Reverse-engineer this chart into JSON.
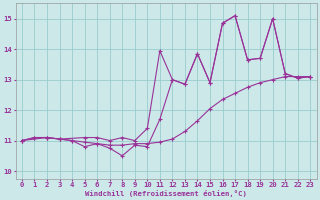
{
  "xlabel": "Windchill (Refroidissement éolien,°C)",
  "bg_color": "#cce8e8",
  "line_color": "#993399",
  "grid_color": "#99cccc",
  "xlim": [
    -0.5,
    23.5
  ],
  "ylim": [
    9.75,
    15.5
  ],
  "xticks": [
    0,
    1,
    2,
    3,
    4,
    5,
    6,
    7,
    8,
    9,
    10,
    11,
    12,
    13,
    14,
    15,
    16,
    17,
    18,
    19,
    20,
    21,
    22,
    23
  ],
  "yticks": [
    10,
    11,
    12,
    13,
    14,
    15
  ],
  "line1_x": [
    0,
    1,
    2,
    3,
    4,
    5,
    6,
    7,
    8,
    9,
    10,
    11,
    12,
    13,
    14,
    15,
    16,
    17,
    18,
    19,
    20,
    21,
    22,
    23
  ],
  "line1_y": [
    11.0,
    11.1,
    11.1,
    11.05,
    11.0,
    10.95,
    10.9,
    10.85,
    10.85,
    10.9,
    10.9,
    10.95,
    11.05,
    11.3,
    11.65,
    12.05,
    12.35,
    12.55,
    12.75,
    12.9,
    13.0,
    13.1,
    13.1,
    13.1
  ],
  "line2_x": [
    0,
    1,
    2,
    3,
    4,
    5,
    6,
    7,
    8,
    9,
    10,
    11,
    12,
    13,
    14,
    15,
    16,
    17,
    18,
    19,
    20,
    21,
    22,
    23
  ],
  "line2_y": [
    11.0,
    11.1,
    11.1,
    11.05,
    11.0,
    10.8,
    10.9,
    10.75,
    10.5,
    10.85,
    10.8,
    11.7,
    13.0,
    12.85,
    13.85,
    12.9,
    14.85,
    15.1,
    13.65,
    13.7,
    15.0,
    13.2,
    13.05,
    13.1
  ],
  "line3_x": [
    0,
    2,
    3,
    5,
    6,
    7,
    8,
    9,
    10,
    11,
    12,
    13,
    14,
    15,
    16,
    17,
    18,
    19,
    20,
    21,
    22,
    23
  ],
  "line3_y": [
    11.0,
    11.1,
    11.05,
    11.1,
    11.1,
    11.0,
    11.1,
    11.0,
    11.4,
    13.95,
    13.0,
    12.85,
    13.85,
    12.9,
    14.85,
    15.1,
    13.65,
    13.7,
    15.0,
    13.2,
    13.05,
    13.1
  ]
}
